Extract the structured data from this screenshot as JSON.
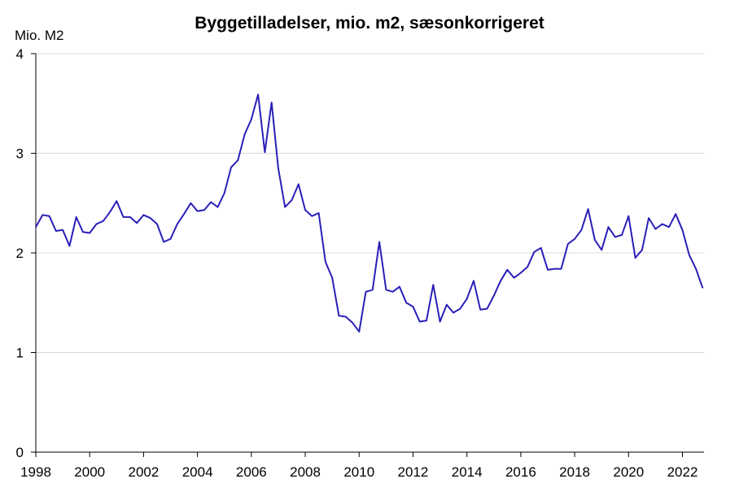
{
  "chart_data": {
    "type": "line",
    "title": "Byggetilladelser, mio. m2, sæsonkorrigeret",
    "ylabel": "Mio. M2",
    "xlabel": "",
    "xlim": [
      1998,
      2022.8
    ],
    "ylim": [
      0,
      4
    ],
    "xticks": [
      "1998",
      "2000",
      "2002",
      "2004",
      "2006",
      "2008",
      "2010",
      "2012",
      "2014",
      "2016",
      "2018",
      "2020",
      "2022"
    ],
    "yticks": [
      "0",
      "1",
      "2",
      "3",
      "4"
    ],
    "grid": true,
    "legend": "none",
    "color": "#2a1fb8",
    "series": [
      {
        "x": [
          1998.0,
          1998.25,
          1998.5,
          1998.75,
          1999.0,
          1999.25,
          1999.5,
          1999.75,
          2000.0,
          2000.25,
          2000.5,
          2000.75,
          2001.0,
          2001.25,
          2001.5,
          2001.75,
          2002.0,
          2002.25,
          2002.5,
          2002.75,
          2003.0,
          2003.25,
          2003.5,
          2003.75,
          2004.0,
          2004.25,
          2004.5,
          2004.75,
          2005.0,
          2005.25,
          2005.5,
          2005.75,
          2006.0,
          2006.25,
          2006.5,
          2006.75,
          2007.0,
          2007.25,
          2007.5,
          2007.75,
          2008.0,
          2008.25,
          2008.5,
          2008.75,
          2009.0,
          2009.25,
          2009.5,
          2009.75,
          2010.0,
          2010.25,
          2010.5,
          2010.75,
          2011.0,
          2011.25,
          2011.5,
          2011.75,
          2012.0,
          2012.25,
          2012.5,
          2012.75,
          2013.0,
          2013.25,
          2013.5,
          2013.75,
          2014.0,
          2014.25,
          2014.5,
          2014.75,
          2015.0,
          2015.25,
          2015.5,
          2015.75,
          2016.0,
          2016.25,
          2016.5,
          2016.75,
          2017.0,
          2017.25,
          2017.5,
          2017.75,
          2018.0,
          2018.25,
          2018.5,
          2018.75,
          2019.0,
          2019.25,
          2019.5,
          2019.75,
          2020.0,
          2020.25,
          2020.5,
          2020.75,
          2021.0,
          2021.25,
          2021.5,
          2021.75,
          2022.0,
          2022.25,
          2022.5,
          2022.75
        ],
        "y": [
          2.26,
          2.38,
          2.37,
          2.22,
          2.23,
          2.07,
          2.36,
          2.21,
          2.2,
          2.29,
          2.32,
          2.41,
          2.52,
          2.36,
          2.36,
          2.3,
          2.38,
          2.35,
          2.29,
          2.11,
          2.14,
          2.29,
          2.39,
          2.5,
          2.42,
          2.43,
          2.51,
          2.46,
          2.6,
          2.86,
          2.93,
          3.19,
          3.34,
          3.59,
          3.01,
          3.51,
          2.85,
          2.46,
          2.53,
          2.69,
          2.43,
          2.37,
          2.4,
          1.91,
          1.75,
          1.37,
          1.36,
          1.3,
          1.21,
          1.61,
          1.63,
          2.11,
          1.63,
          1.61,
          1.66,
          1.5,
          1.46,
          1.31,
          1.32,
          1.68,
          1.31,
          1.48,
          1.4,
          1.44,
          1.54,
          1.72,
          1.43,
          1.44,
          1.57,
          1.72,
          1.83,
          1.75,
          1.8,
          1.86,
          2.01,
          2.05,
          1.83,
          1.84,
          1.84,
          2.09,
          2.14,
          2.23,
          2.44,
          2.13,
          2.03,
          2.26,
          2.16,
          2.18,
          2.37,
          1.95,
          2.03,
          2.35,
          2.24,
          2.29,
          2.26,
          2.39,
          2.23,
          1.98,
          1.84,
          1.65
        ]
      }
    ]
  }
}
